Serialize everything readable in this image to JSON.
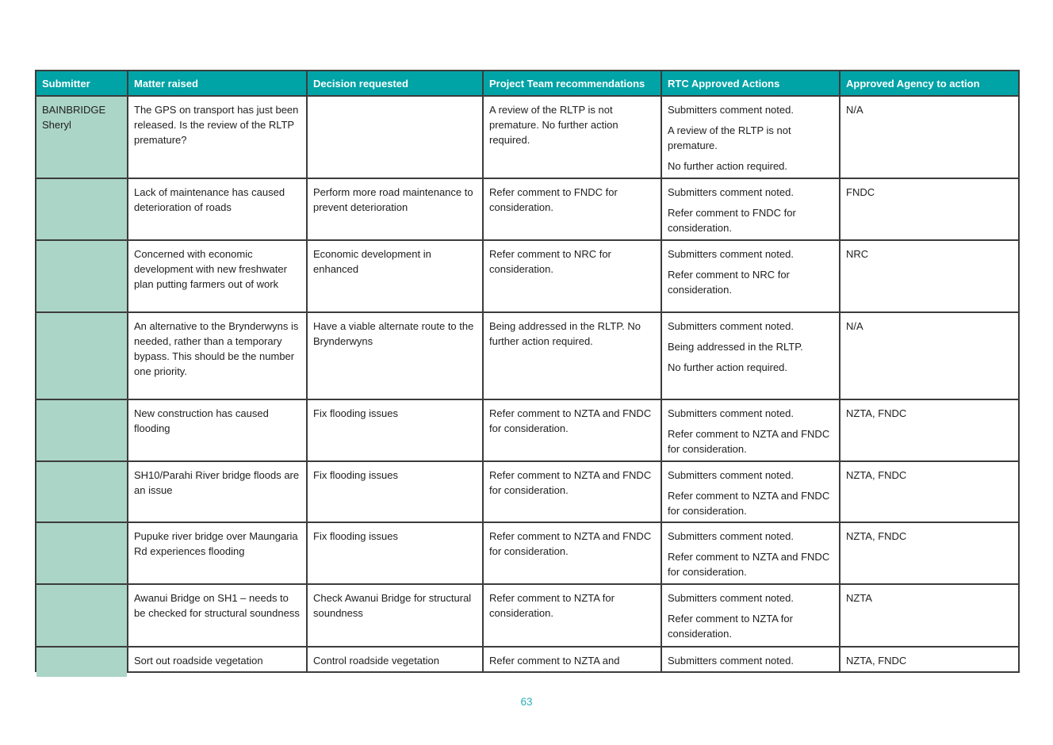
{
  "document": {
    "page_number": "63",
    "accent_color": "#00A3A6",
    "submitter_column_color": "#ABD5C6"
  },
  "table": {
    "headers": [
      "Submitter",
      "Matter raised",
      "Decision requested",
      "Project Team recommendations",
      "RTC Approved Actions",
      "Approved Agency to action"
    ],
    "rows": [
      {
        "submitter": "BAINBRIDGE\nSheryl",
        "matter_raised": "The GPS on transport has just been released. Is the review of the RLTP premature?",
        "decision_requested": "",
        "project_team_recommendations": "A review of the RLTP is not premature. No further action required.",
        "rtc_approved_actions": [
          "Submitters comment noted.",
          "A review of the RLTP is not premature.",
          "No further action required."
        ],
        "approved_agency": "N/A"
      },
      {
        "submitter": "",
        "matter_raised": "Lack of maintenance has caused deterioration of roads",
        "decision_requested": "Perform more road maintenance to prevent deterioration",
        "project_team_recommendations": "Refer comment to FNDC for consideration.",
        "rtc_approved_actions": [
          "Submitters comment noted.",
          "Refer comment to FNDC for consideration."
        ],
        "approved_agency": "FNDC"
      },
      {
        "submitter": "",
        "matter_raised": "Concerned with economic development with new freshwater plan putting farmers out of work",
        "decision_requested": "Economic development in enhanced",
        "project_team_recommendations": "Refer comment to NRC for consideration.",
        "rtc_approved_actions": [
          "Submitters comment noted.",
          "Refer comment to NRC for consideration."
        ],
        "approved_agency": "NRC"
      },
      {
        "submitter": "",
        "matter_raised": "An alternative to the Brynderwyns is needed, rather than a temporary bypass. This should be the number one priority.",
        "decision_requested": "Have a viable alternate route to the Brynderwyns",
        "project_team_recommendations": "Being addressed in the RLTP. No further action required.",
        "rtc_approved_actions": [
          "Submitters comment noted.",
          "Being addressed in the RLTP.",
          "No further action required."
        ],
        "approved_agency": "N/A"
      },
      {
        "submitter": "",
        "matter_raised": "New construction has caused flooding",
        "decision_requested": "Fix flooding issues",
        "project_team_recommendations": "Refer comment to NZTA and FNDC for consideration.",
        "rtc_approved_actions": [
          "Submitters comment noted.",
          "Refer comment to NZTA and FNDC for consideration."
        ],
        "approved_agency": "NZTA, FNDC"
      },
      {
        "submitter": "",
        "matter_raised": "SH10/Parahi River bridge floods are an issue",
        "decision_requested": "Fix flooding issues",
        "project_team_recommendations": "Refer comment to NZTA and FNDC for consideration.",
        "rtc_approved_actions": [
          "Submitters comment noted.",
          "Refer comment to NZTA and FNDC for consideration."
        ],
        "approved_agency": "NZTA, FNDC"
      },
      {
        "submitter": "",
        "matter_raised": "Pupuke river bridge over Maungaria Rd experiences flooding",
        "decision_requested": "Fix flooding issues",
        "project_team_recommendations": "Refer comment to NZTA and FNDC for consideration.",
        "rtc_approved_actions": [
          "Submitters comment noted.",
          "Refer comment to NZTA and FNDC for consideration."
        ],
        "approved_agency": "NZTA, FNDC"
      },
      {
        "submitter": "",
        "matter_raised": "Awanui Bridge on SH1 – needs to be checked for structural soundness",
        "decision_requested": "Check Awanui Bridge for structural soundness",
        "project_team_recommendations": "Refer comment to NZTA for consideration.",
        "rtc_approved_actions": [
          "Submitters comment noted.",
          "Refer comment to NZTA for consideration."
        ],
        "approved_agency": "NZTA"
      },
      {
        "submitter": "",
        "matter_raised": "Sort out roadside vegetation",
        "decision_requested": "Control roadside vegetation",
        "project_team_recommendations": "Refer comment to NZTA and",
        "rtc_approved_actions": [
          "Submitters comment noted."
        ],
        "approved_agency": "NZTA, FNDC"
      }
    ]
  }
}
